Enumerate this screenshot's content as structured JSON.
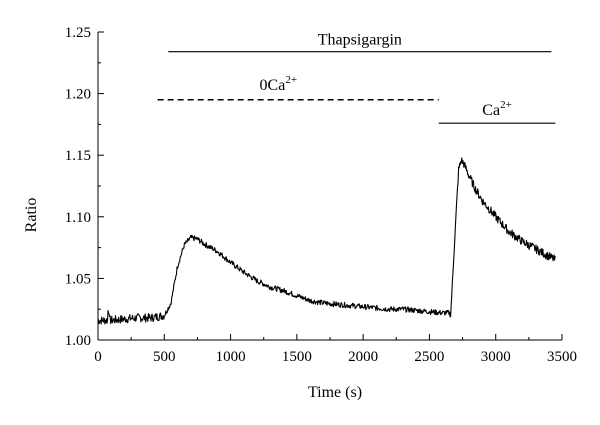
{
  "chart_data": {
    "type": "line",
    "title": "",
    "xlabel": "Time (s)",
    "ylabel": "Ratio",
    "xlim": [
      0,
      3500
    ],
    "ylim": [
      1.0,
      1.25
    ],
    "x_ticks": [
      0,
      500,
      1000,
      1500,
      2000,
      2500,
      3000,
      3500
    ],
    "x_tick_labels": [
      "0",
      "500",
      "1000",
      "1500",
      "2000",
      "2500",
      "3000",
      "3500"
    ],
    "y_ticks": [
      1.0,
      1.05,
      1.1,
      1.15,
      1.2,
      1.25
    ],
    "y_tick_labels": [
      "1.00",
      "1.05",
      "1.10",
      "1.15",
      "1.20",
      "1.25"
    ],
    "grid": false,
    "legend": "none",
    "series": [
      {
        "x": [
          0,
          100,
          200,
          300,
          400,
          450,
          500,
          550,
          600,
          650,
          700,
          750,
          800,
          900,
          1000,
          1100,
          1200,
          1300,
          1400,
          1500,
          1600,
          1700,
          1800,
          1900,
          2000,
          2100,
          2200,
          2300,
          2400,
          2500,
          2600,
          2650,
          2660,
          2700,
          2720,
          2740,
          2760,
          2800,
          2850,
          2900,
          3000,
          3100,
          3200,
          3300,
          3400,
          3450
        ],
        "y": [
          1.016,
          1.016,
          1.017,
          1.018,
          1.018,
          1.019,
          1.02,
          1.03,
          1.06,
          1.077,
          1.083,
          1.082,
          1.078,
          1.072,
          1.063,
          1.055,
          1.048,
          1.043,
          1.04,
          1.036,
          1.032,
          1.03,
          1.029,
          1.028,
          1.027,
          1.026,
          1.025,
          1.025,
          1.024,
          1.023,
          1.022,
          1.022,
          1.02,
          1.1,
          1.138,
          1.146,
          1.143,
          1.133,
          1.122,
          1.113,
          1.1,
          1.088,
          1.08,
          1.074,
          1.068,
          1.065
        ]
      }
    ],
    "annotations": [
      {
        "label": "Thapsigargin",
        "x_start": 530,
        "x_end": 3420,
        "y": 1.234,
        "style": "solid"
      },
      {
        "label_base": "0Ca",
        "label_sup": "2+",
        "x_start": 450,
        "x_end": 2570,
        "y": 1.195,
        "style": "dashed"
      },
      {
        "label_base": "Ca",
        "label_sup": "2+",
        "x_start": 2570,
        "x_end": 3450,
        "y": 1.176,
        "style": "solid"
      }
    ]
  }
}
